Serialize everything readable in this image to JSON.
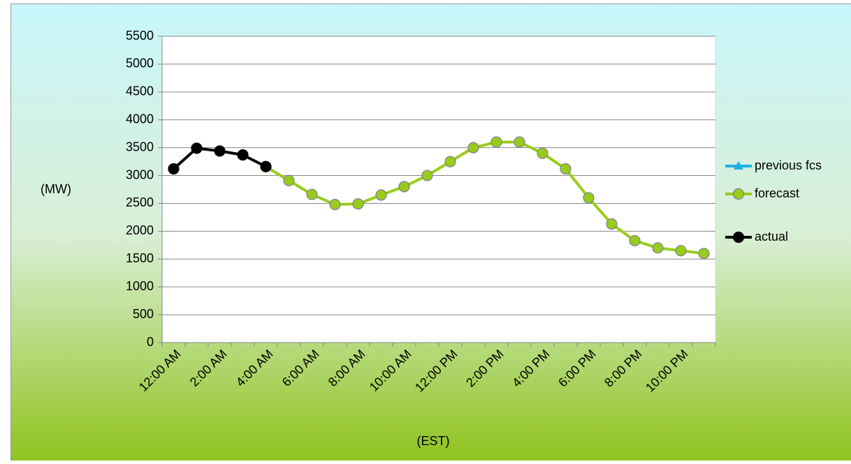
{
  "chart_data": {
    "type": "line",
    "y_label": "(MW)",
    "x_label": "(EST)",
    "categories": [
      "12:00 AM",
      null,
      "2:00 AM",
      null,
      "4:00 AM",
      null,
      "6:00 AM",
      null,
      "8:00 AM",
      null,
      "10:00 AM",
      null,
      "12:00 PM",
      null,
      "2:00 PM",
      null,
      "4:00 PM",
      null,
      "6:00 PM",
      null,
      "8:00 PM",
      null,
      "10:00 PM",
      null
    ],
    "ylim": [
      0,
      5500
    ],
    "yticks": [
      0,
      500,
      1000,
      1500,
      2000,
      2500,
      3000,
      3500,
      4000,
      4500,
      5000,
      5500
    ],
    "grid": true,
    "legend": "right",
    "series": [
      {
        "name": "previous fcs",
        "color": "#1fb0e8",
        "marker": "triangle",
        "values": [
          null,
          null,
          null,
          null,
          null,
          null,
          null,
          null,
          null,
          null,
          null,
          null,
          null,
          null,
          null,
          null,
          null,
          null,
          null,
          null,
          null,
          null,
          null,
          null
        ]
      },
      {
        "name": "forecast",
        "color": "#99cc1a",
        "marker": "circle",
        "values": [
          null,
          null,
          null,
          null,
          3160,
          2910,
          2660,
          2480,
          2490,
          2650,
          2800,
          3000,
          3250,
          3500,
          3600,
          3600,
          3400,
          3120,
          2600,
          2130,
          1830,
          1700,
          1650,
          1600
        ]
      },
      {
        "name": "actual",
        "color": "#000000",
        "marker": "circle",
        "values": [
          3120,
          3490,
          3440,
          3370,
          3160,
          null,
          null,
          null,
          null,
          null,
          null,
          null,
          null,
          null,
          null,
          null,
          null,
          null,
          null,
          null,
          null,
          null,
          null,
          null
        ]
      }
    ]
  }
}
